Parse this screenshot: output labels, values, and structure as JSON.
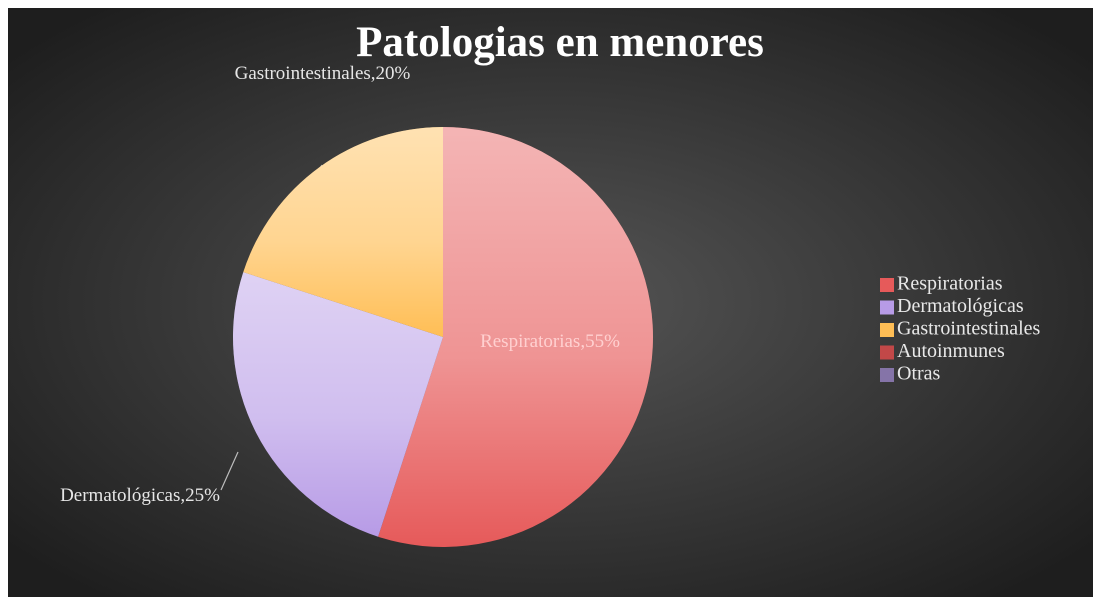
{
  "chart_data": {
    "type": "pie",
    "title": "Patologias en menores",
    "categories": [
      "Respiratorias",
      "Dermatológicas",
      "Gastrointestinales",
      "Autoinmunes",
      "Otras"
    ],
    "values": [
      55,
      25,
      20,
      0,
      0
    ],
    "value_labels": [
      "Respiratorias,55%",
      "Dermatológicas,25%",
      "Gastrointestinales,20%",
      null,
      null
    ],
    "colors": [
      "#e65a5a",
      "#b79be6",
      "#ffbe55",
      "#c24848",
      "#8574a8"
    ],
    "legend": "right"
  }
}
